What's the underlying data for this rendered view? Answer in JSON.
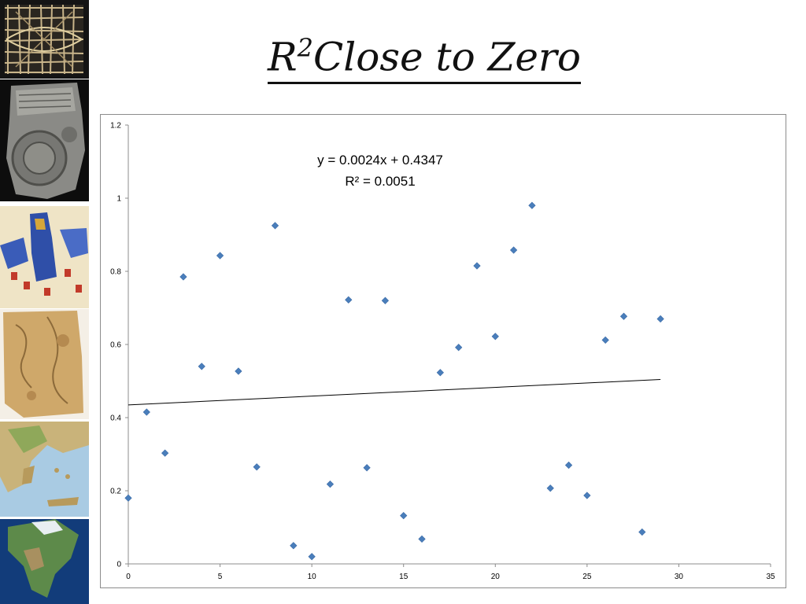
{
  "slide": {
    "title_main": "R",
    "title_sup": "2",
    "title_rest": "Close to Zero"
  },
  "thumbnails": [
    {
      "icon": "grid-map-icon"
    },
    {
      "icon": "clay-tablet-map-icon"
    },
    {
      "icon": "illustrated-world-map-icon"
    },
    {
      "icon": "parchment-map-icon"
    },
    {
      "icon": "greece-relief-map-icon"
    },
    {
      "icon": "north-america-globe-icon"
    }
  ],
  "chart_data": {
    "type": "scatter",
    "equation": "y = 0.0024x + 0.4347",
    "r_squared_label": "R² = 0.0051",
    "xlim": [
      0,
      35
    ],
    "ylim": [
      0,
      1.2
    ],
    "x_ticks": [
      "0",
      "5",
      "10",
      "15",
      "20",
      "25",
      "30",
      "35"
    ],
    "y_ticks": [
      "0",
      "0.2",
      "0.4",
      "0.6",
      "0.8",
      "1",
      "1.2"
    ],
    "trendline": {
      "slope": 0.0024,
      "intercept": 0.4347,
      "x_start": 0,
      "x_end": 29
    },
    "marker_color": "#4a7ebb",
    "points": [
      {
        "x": 0,
        "y": 0.18
      },
      {
        "x": 1,
        "y": 0.415
      },
      {
        "x": 2,
        "y": 0.303
      },
      {
        "x": 3,
        "y": 0.785
      },
      {
        "x": 4,
        "y": 0.54
      },
      {
        "x": 5,
        "y": 0.843
      },
      {
        "x": 6,
        "y": 0.527
      },
      {
        "x": 7,
        "y": 0.265
      },
      {
        "x": 8,
        "y": 0.925
      },
      {
        "x": 9,
        "y": 0.05
      },
      {
        "x": 10,
        "y": 0.02
      },
      {
        "x": 11,
        "y": 0.218
      },
      {
        "x": 12,
        "y": 0.722
      },
      {
        "x": 13,
        "y": 0.263
      },
      {
        "x": 14,
        "y": 0.72
      },
      {
        "x": 15,
        "y": 0.132
      },
      {
        "x": 16,
        "y": 0.068
      },
      {
        "x": 17,
        "y": 0.523
      },
      {
        "x": 18,
        "y": 0.592
      },
      {
        "x": 19,
        "y": 0.815
      },
      {
        "x": 20,
        "y": 0.622
      },
      {
        "x": 21,
        "y": 0.858
      },
      {
        "x": 22,
        "y": 0.98
      },
      {
        "x": 23,
        "y": 0.207
      },
      {
        "x": 24,
        "y": 0.27
      },
      {
        "x": 25,
        "y": 0.187
      },
      {
        "x": 26,
        "y": 0.612
      },
      {
        "x": 27,
        "y": 0.677
      },
      {
        "x": 28,
        "y": 0.087
      },
      {
        "x": 29,
        "y": 0.67
      }
    ]
  }
}
